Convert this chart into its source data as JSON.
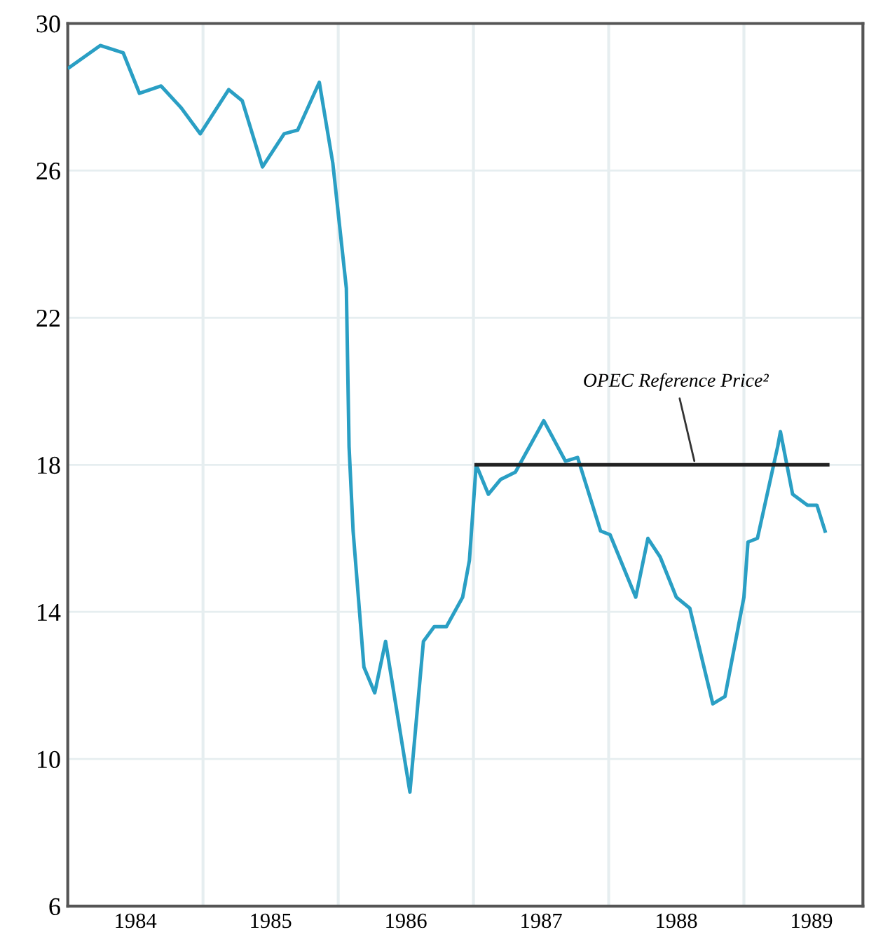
{
  "chart_data": {
    "type": "line",
    "series": [
      {
        "color": "#2a9fc4",
        "x": [
          1984.01,
          1984.24,
          1984.41,
          1984.53,
          1984.69,
          1984.84,
          1984.98,
          1985.19,
          1985.29,
          1985.44,
          1985.6,
          1985.7,
          1985.86,
          1985.96,
          1986.06,
          1986.08,
          1986.11,
          1986.19,
          1986.27,
          1986.35,
          1986.53,
          1986.63,
          1986.71,
          1986.8,
          1986.92,
          1986.97,
          1987.02,
          1987.11,
          1987.2,
          1987.31,
          1987.52,
          1987.68,
          1987.77,
          1987.94,
          1988.01,
          1988.2,
          1988.29,
          1988.38,
          1988.5,
          1988.6,
          1988.77,
          1988.86,
          1989.0,
          1989.03,
          1989.1,
          1989.25,
          1989.27,
          1989.36,
          1989.47,
          1989.54,
          1989.6
        ],
        "values": [
          28.8,
          29.4,
          29.2,
          28.1,
          28.3,
          27.7,
          27.0,
          28.2,
          27.9,
          26.1,
          27.0,
          27.1,
          28.4,
          26.2,
          22.8,
          18.5,
          16.2,
          12.5,
          11.8,
          13.2,
          9.1,
          13.2,
          13.6,
          13.6,
          14.4,
          15.4,
          18.0,
          17.2,
          17.6,
          17.8,
          19.2,
          18.1,
          18.2,
          16.2,
          16.1,
          14.4,
          16.0,
          15.5,
          14.4,
          14.1,
          11.5,
          11.7,
          14.4,
          15.9,
          16.0,
          18.5,
          18.9,
          17.2,
          16.9,
          16.9,
          16.2
        ]
      },
      {
        "color": "#222222",
        "x": [
          1987.02,
          1989.62
        ],
        "values": [
          18,
          18
        ]
      }
    ],
    "annotations": [
      {
        "text": "OPEC Reference Price²",
        "x": 1988.64,
        "y": 18
      }
    ],
    "xlim": [
      1984,
      1989.88
    ],
    "xticks": [
      {
        "value": 1985,
        "label": null
      },
      {
        "value": 1986,
        "label": null
      },
      {
        "value": 1987,
        "label": null
      },
      {
        "value": 1988,
        "label": null
      },
      {
        "value": 1989,
        "label": null
      },
      {
        "value": 1984.5,
        "label": "1984"
      },
      {
        "value": 1985.5,
        "label": "1985"
      },
      {
        "value": 1986.5,
        "label": "1986"
      },
      {
        "value": 1987.5,
        "label": "1987"
      },
      {
        "value": 1988.5,
        "label": "1988"
      },
      {
        "value": 1989.5,
        "label": "1989"
      }
    ],
    "ylim": [
      6,
      30
    ],
    "yticks": [
      6,
      10,
      14,
      18,
      22,
      26,
      30
    ],
    "grid": true,
    "line_style": "solid"
  }
}
